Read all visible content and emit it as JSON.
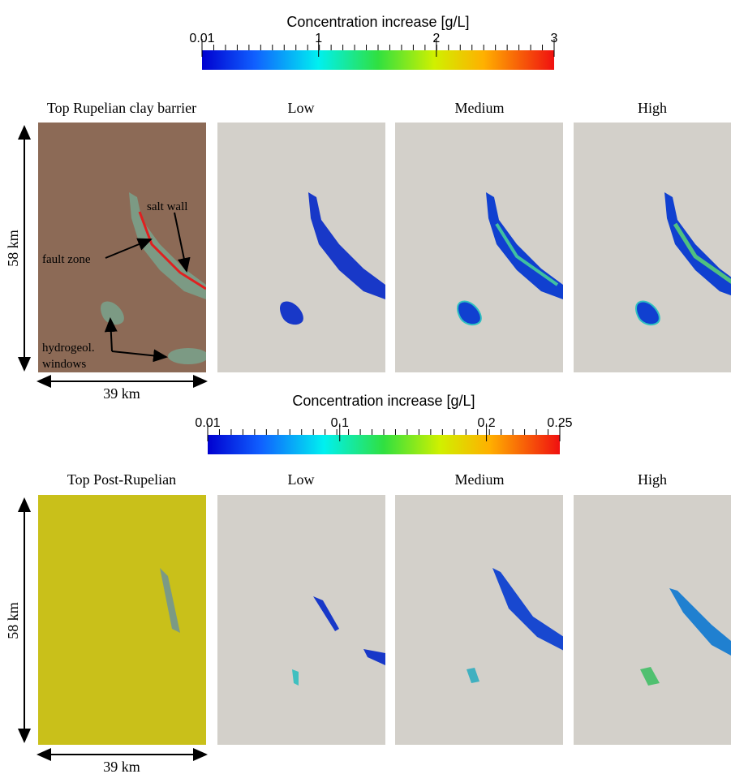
{
  "colorbars": [
    {
      "title": "Concentration increase [g/L]",
      "range": [
        0.01,
        3
      ],
      "ticks": [
        0.01,
        1,
        2,
        3
      ]
    },
    {
      "title": "Concentration increase [g/L]",
      "range": [
        0.01,
        0.25
      ],
      "ticks": [
        0.01,
        0.1,
        0.2,
        0.25
      ]
    }
  ],
  "rows": [
    {
      "titles": [
        "Top Rupelian clay barrier",
        "Low",
        "Medium",
        "High"
      ],
      "height_label": "58 km",
      "width_label": "39 km",
      "annotations": {
        "salt_wall": "salt wall",
        "fault_zone": "fault zone",
        "windows_1": "hydrogeol.",
        "windows_2": "windows"
      }
    },
    {
      "titles": [
        "Top Post-Rupelian",
        "Low",
        "Medium",
        "High"
      ],
      "height_label": "58 km",
      "width_label": "39 km"
    }
  ]
}
